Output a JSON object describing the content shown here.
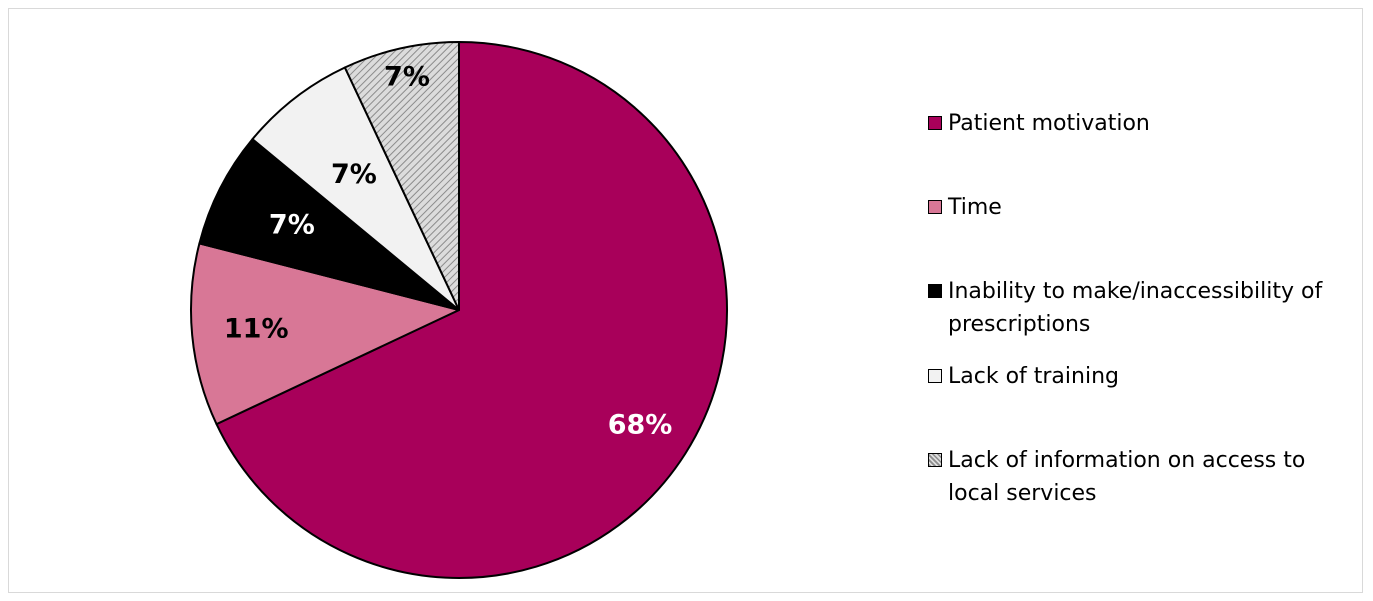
{
  "chart_data": {
    "type": "pie",
    "title": "",
    "legend_position": "right",
    "start_angle": "12 o'clock, clockwise",
    "slices": [
      {
        "label": "Patient motivation",
        "value": 68,
        "value_label": "68%",
        "color": "#a8005a",
        "label_color": "#ffffff",
        "pattern": "solid"
      },
      {
        "label": "Time",
        "value": 11,
        "value_label": "11%",
        "color": "#d87796",
        "label_color": "#000000",
        "pattern": "solid"
      },
      {
        "label": "Inability to make/inaccessibility of prescriptions",
        "value": 7,
        "value_label": "7%",
        "color": "#000000",
        "label_color": "#ffffff",
        "pattern": "solid"
      },
      {
        "label": "Lack of training",
        "value": 7,
        "value_label": "7%",
        "color": "#f2f2f2",
        "label_color": "#000000",
        "pattern": "solid"
      },
      {
        "label": "Lack of information on access to local services",
        "value": 7,
        "value_label": "7%",
        "color": "#c8c8c8",
        "label_color": "#000000",
        "pattern": "diagonal-hatch"
      }
    ]
  }
}
